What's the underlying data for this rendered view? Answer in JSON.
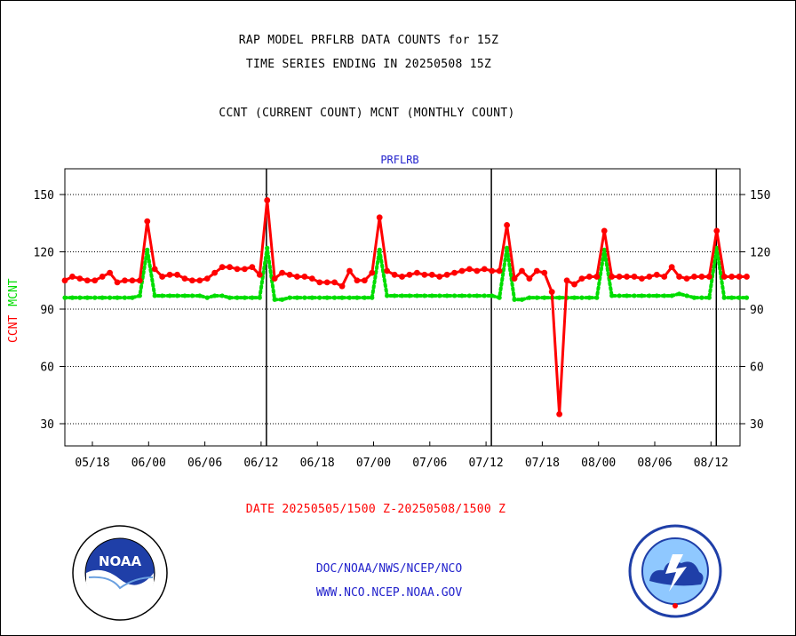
{
  "header": {
    "title_line1": "RAP MODEL PRFLRB DATA COUNTS for 15Z",
    "title_line2": "TIME SERIES ENDING IN 20250508 15Z",
    "subtitle": "CCNT (CURRENT COUNT) MCNT (MONTHLY COUNT)"
  },
  "footer": {
    "date_range": "DATE 20250505/1500 Z-20250508/1500 Z",
    "link1": "DOC/NOAA/NWS/NCEP/NCO",
    "link2": "WWW.NCO.NCEP.NOAA.GOV"
  },
  "logos": {
    "noaa": {
      "name": "noaa-logo",
      "text": "NOAA"
    },
    "nws": {
      "name": "nws-logo"
    }
  },
  "colors": {
    "ccnt": "#ff0000",
    "mcnt": "#00dd00",
    "plot_title": "#2222cc",
    "grid": "#000000"
  },
  "chart_data": {
    "type": "line",
    "title": "PRFLRB",
    "ylabel_parts": [
      {
        "text": "CCNT",
        "color": "#ff0000"
      },
      {
        "text": "MCNT",
        "color": "#00dd00"
      }
    ],
    "ylim": [
      18,
      163
    ],
    "yticks": [
      30,
      60,
      90,
      120,
      150
    ],
    "grid": "horizontal dotted",
    "x_start": "05/16 hour 15",
    "x_end": "08/15 hour 15",
    "x_tick_labels": [
      "05/18",
      "06/00",
      "06/06",
      "06/12",
      "06/18",
      "07/00",
      "07/06",
      "07/12",
      "07/18",
      "08/00",
      "08/06",
      "08/12"
    ],
    "day_boundaries": [
      "06/12",
      "07/12",
      "08/12"
    ],
    "series": [
      {
        "name": "CCNT",
        "color": "#ff0000",
        "values": [
          105,
          107,
          106,
          105,
          105,
          107,
          109,
          104,
          105,
          105,
          105,
          136,
          111,
          107,
          108,
          108,
          106,
          105,
          105,
          106,
          109,
          112,
          112,
          111,
          111,
          112,
          108,
          147,
          106,
          109,
          108,
          107,
          107,
          106,
          104,
          104,
          104,
          102,
          110,
          105,
          105,
          109,
          138,
          110,
          108,
          107,
          108,
          109,
          108,
          108,
          107,
          108,
          109,
          110,
          111,
          110,
          111,
          110,
          110,
          134,
          106,
          110,
          106,
          110,
          109,
          99,
          35,
          105,
          103,
          106,
          107,
          107,
          131,
          107,
          107,
          107,
          107,
          106,
          107,
          108,
          107,
          112,
          107,
          106,
          107,
          107,
          107,
          131,
          107,
          107,
          107,
          107
        ]
      },
      {
        "name": "MCNT",
        "color": "#00dd00",
        "values": [
          96,
          96,
          96,
          96,
          96,
          96,
          96,
          96,
          96,
          96,
          97,
          121,
          97,
          97,
          97,
          97,
          97,
          97,
          97,
          96,
          97,
          97,
          96,
          96,
          96,
          96,
          96,
          122,
          95,
          95,
          96,
          96,
          96,
          96,
          96,
          96,
          96,
          96,
          96,
          96,
          96,
          96,
          121,
          97,
          97,
          97,
          97,
          97,
          97,
          97,
          97,
          97,
          97,
          97,
          97,
          97,
          97,
          97,
          96,
          122,
          95,
          95,
          96,
          96,
          96,
          96,
          96,
          96,
          96,
          96,
          96,
          96,
          121,
          97,
          97,
          97,
          97,
          97,
          97,
          97,
          97,
          97,
          98,
          97,
          96,
          96,
          96,
          122,
          96,
          96,
          96,
          96
        ]
      }
    ]
  }
}
